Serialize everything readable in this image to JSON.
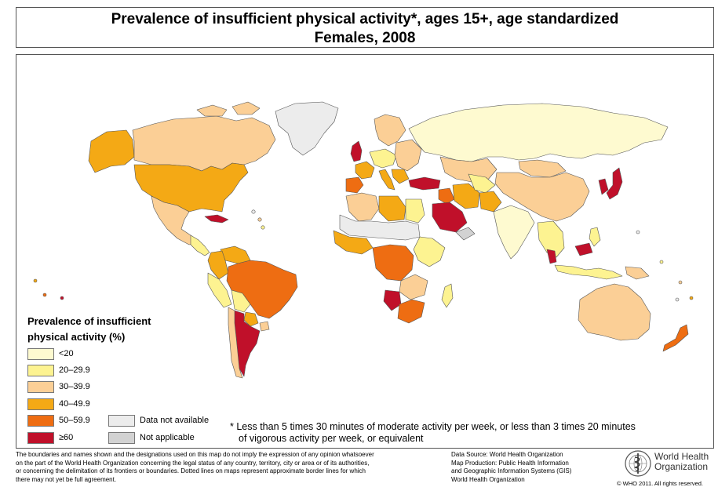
{
  "title": {
    "line1": "Prevalence of insufficient physical activity*, ages 15+, age standardized",
    "line2": "Females, 2008"
  },
  "legend": {
    "title_line1": "Prevalence of insufficient",
    "title_line2": "physical activity (%)",
    "classes": [
      {
        "label": "<20",
        "color": "#fefad0"
      },
      {
        "label": "20–29.9",
        "color": "#fdf391"
      },
      {
        "label": "30–39.9",
        "color": "#fbcf96"
      },
      {
        "label": "40–49.9",
        "color": "#f4a915"
      },
      {
        "label": "50–59.9",
        "color": "#ee6d12"
      },
      {
        "label": "≥60",
        "color": "#c0102a"
      }
    ],
    "special": [
      {
        "label": "Data not available",
        "color": "#ececec"
      },
      {
        "label": "Not applicable",
        "color": "#d2d2d2"
      }
    ]
  },
  "footnote": {
    "line1": "* Less than 5 times 30 minutes of moderate activity per week, or less than 3 times 20 minutes",
    "line2": "of vigorous activity per week, or equivalent"
  },
  "disclaimer": {
    "line1": "The boundaries and names shown and the designations used on this map do not imply the expression of any opinion whatsoever",
    "line2": "on the part of the World Health Organization concerning the legal status of any country, territory, city or area or of its authorities,",
    "line3": "or concerning the delimitation of its frontiers or boundaries.  Dotted lines on maps represent approximate border lines for which",
    "line4": "there may not yet be full agreement."
  },
  "source": {
    "line1": "Data Source: World Health Organization",
    "line2": "Map Production: Public Health Information",
    "line3": "and Geographic Information Systems (GIS)",
    "line4": "World Health Organization"
  },
  "organization": {
    "name_line1": "World Health",
    "name_line2": "Organization",
    "logo_icon": "who-emblem-icon",
    "copyright": "© WHO 2011. All rights reserved."
  },
  "map": {
    "ocean_color": "#ffffff",
    "border_color": "#555555",
    "regions": [
      {
        "name": "canada",
        "fill": "#fbcf96"
      },
      {
        "name": "alaska",
        "fill": "#f4a915"
      },
      {
        "name": "usa",
        "fill": "#f4a915"
      },
      {
        "name": "greenland",
        "fill": "#ececec"
      },
      {
        "name": "mexico",
        "fill": "#fbcf96"
      },
      {
        "name": "central-america",
        "fill": "#fdf391"
      },
      {
        "name": "cuba",
        "fill": "#c0102a"
      },
      {
        "name": "colombia",
        "fill": "#f4a915"
      },
      {
        "name": "venezuela",
        "fill": "#f4a915"
      },
      {
        "name": "brazil",
        "fill": "#ee6d12"
      },
      {
        "name": "peru",
        "fill": "#fdf391"
      },
      {
        "name": "bolivia",
        "fill": "#fdf391"
      },
      {
        "name": "paraguay",
        "fill": "#f4a915"
      },
      {
        "name": "argentina",
        "fill": "#c0102a"
      },
      {
        "name": "chile",
        "fill": "#fbcf96"
      },
      {
        "name": "uruguay",
        "fill": "#fbcf96"
      },
      {
        "name": "uk",
        "fill": "#c0102a"
      },
      {
        "name": "scandinavia",
        "fill": "#fbcf96"
      },
      {
        "name": "france",
        "fill": "#f4a915"
      },
      {
        "name": "iberia",
        "fill": "#ee6d12"
      },
      {
        "name": "central-europe",
        "fill": "#fdf391"
      },
      {
        "name": "italy",
        "fill": "#f4a915"
      },
      {
        "name": "eastern-europe",
        "fill": "#fbcf96"
      },
      {
        "name": "russia",
        "fill": "#fefad0"
      },
      {
        "name": "turkey",
        "fill": "#c0102a"
      },
      {
        "name": "kazakhstan",
        "fill": "#fbcf96"
      },
      {
        "name": "mongolia",
        "fill": "#fbcf96"
      },
      {
        "name": "china",
        "fill": "#fbcf96"
      },
      {
        "name": "india",
        "fill": "#fefad0"
      },
      {
        "name": "iran",
        "fill": "#f4a915"
      },
      {
        "name": "saudi-arabia",
        "fill": "#c0102a"
      },
      {
        "name": "iraq",
        "fill": "#ee6d12"
      },
      {
        "name": "japan",
        "fill": "#c0102a"
      },
      {
        "name": "korea",
        "fill": "#c0102a"
      },
      {
        "name": "southeast-asia",
        "fill": "#fdf391"
      },
      {
        "name": "malaysia",
        "fill": "#c0102a"
      },
      {
        "name": "indonesia",
        "fill": "#fdf391"
      },
      {
        "name": "philippines",
        "fill": "#fdf391"
      },
      {
        "name": "australia",
        "fill": "#fbcf96"
      },
      {
        "name": "new-zealand",
        "fill": "#ee6d12"
      },
      {
        "name": "papua-new-guinea",
        "fill": "#fbcf96"
      },
      {
        "name": "north-africa-west",
        "fill": "#fbcf96"
      },
      {
        "name": "libya",
        "fill": "#f4a915"
      },
      {
        "name": "egypt",
        "fill": "#fdf391"
      },
      {
        "name": "sahel",
        "fill": "#ececec"
      },
      {
        "name": "west-africa",
        "fill": "#f4a915"
      },
      {
        "name": "central-africa",
        "fill": "#ee6d12"
      },
      {
        "name": "east-africa",
        "fill": "#fdf391"
      },
      {
        "name": "southern-africa",
        "fill": "#ee6d12"
      },
      {
        "name": "namibia",
        "fill": "#c0102a"
      },
      {
        "name": "madagascar",
        "fill": "#fdf391"
      }
    ]
  }
}
